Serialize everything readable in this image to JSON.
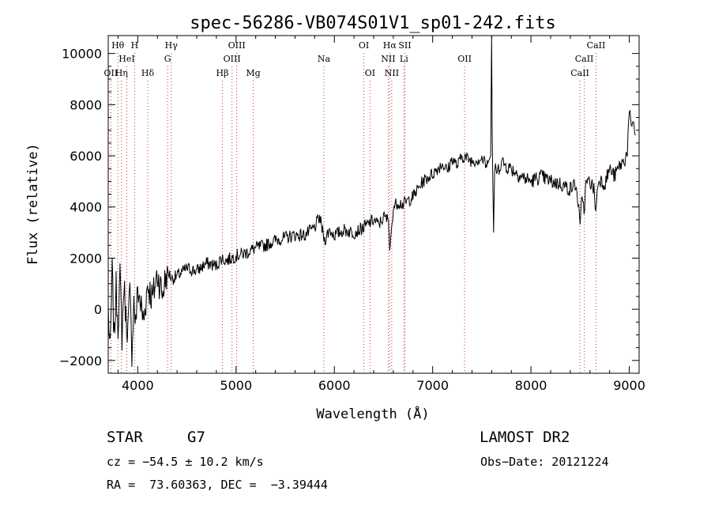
{
  "chart_data": {
    "type": "line",
    "title": "spec-56286-VB074S01V1_sp01-242.fits",
    "xlabel": "Wavelength (Å)",
    "ylabel": "Flux (relative)",
    "xlim": [
      3700,
      9100
    ],
    "ylim": [
      -2500,
      10700
    ],
    "xticks": [
      4000,
      5000,
      6000,
      7000,
      8000,
      9000
    ],
    "yticks": [
      -2000,
      0,
      2000,
      4000,
      6000,
      8000,
      10000
    ],
    "ytick_labels": [
      "−2000",
      "0",
      "2000",
      "4000",
      "6000",
      "8000",
      "10000"
    ],
    "grid": false,
    "series": [
      {
        "x": [
          3700,
          3720,
          3740,
          3760,
          3780,
          3800,
          3820,
          3840,
          3860,
          3880,
          3900,
          3920,
          3940,
          3960,
          3980,
          4000,
          4030,
          4060,
          4100,
          4150,
          4200,
          4250,
          4300,
          4350,
          4400,
          4500,
          4600,
          4700,
          4800,
          4850,
          4900,
          5000,
          5100,
          5200,
          5300,
          5400,
          5500,
          5600,
          5700,
          5800,
          5850,
          5900,
          5950,
          6000,
          6100,
          6200,
          6300,
          6400,
          6450,
          6500,
          6550,
          6563,
          6600,
          6650,
          6700,
          6800,
          6900,
          7000,
          7100,
          7150,
          7200,
          7250,
          7300,
          7400,
          7500,
          7550,
          7590,
          7600,
          7605,
          7610,
          7620,
          7630,
          7640,
          7650,
          7700,
          7750,
          7800,
          7900,
          8000,
          8100,
          8200,
          8300,
          8400,
          8450,
          8480,
          8500,
          8520,
          8540,
          8560,
          8600,
          8640,
          8660,
          8680,
          8700,
          8750,
          8800,
          8850,
          8900,
          8950,
          8980,
          9000,
          9020,
          9040,
          9060
        ],
        "y": [
          0,
          -1800,
          1500,
          -1200,
          800,
          -500,
          1200,
          -1000,
          1000,
          -300,
          -800,
          600,
          -1600,
          300,
          -600,
          800,
          200,
          -500,
          1000,
          400,
          1400,
          600,
          1500,
          1200,
          1300,
          1600,
          1500,
          1800,
          1700,
          2000,
          1900,
          2100,
          2200,
          2400,
          2500,
          2700,
          2800,
          2900,
          2900,
          3200,
          3600,
          2700,
          3100,
          2900,
          3100,
          3000,
          3200,
          3500,
          3300,
          3600,
          3500,
          2300,
          4000,
          4200,
          4100,
          4400,
          5000,
          5300,
          5700,
          5400,
          5900,
          5600,
          6000,
          5800,
          5900,
          5600,
          6000,
          10700,
          7000,
          5500,
          3000,
          5400,
          5700,
          5300,
          5800,
          5600,
          5500,
          5200,
          5000,
          5200,
          5000,
          4900,
          4700,
          4900,
          4200,
          3100,
          4600,
          3800,
          4900,
          5000,
          4700,
          3800,
          4900,
          5100,
          4900,
          5500,
          5200,
          5600,
          5800,
          6200,
          7700,
          7000,
          7500,
          6800
        ]
      }
    ],
    "line_markers": [
      {
        "label": "Hθ",
        "x": 3798,
        "row": 1
      },
      {
        "label": "OII",
        "x": 3727,
        "row": 3
      },
      {
        "label": "H",
        "x": 3969,
        "row": 1
      },
      {
        "label": "HeI",
        "x": 3889,
        "row": 2
      },
      {
        "label": "Hη",
        "x": 3835,
        "row": 3
      },
      {
        "label": "Hδ",
        "x": 4102,
        "row": 3
      },
      {
        "label": "Hγ",
        "x": 4341,
        "row": 1
      },
      {
        "label": "G",
        "x": 4304,
        "row": 2
      },
      {
        "label": "OIII",
        "x": 5007,
        "row": 1
      },
      {
        "label": "OIII",
        "x": 4959,
        "row": 2
      },
      {
        "label": "Hβ",
        "x": 4861,
        "row": 3
      },
      {
        "label": "Mg",
        "x": 5175,
        "row": 3
      },
      {
        "label": "Na",
        "x": 5893,
        "row": 2
      },
      {
        "label": "OI",
        "x": 6300,
        "row": 1
      },
      {
        "label": "OI",
        "x": 6363,
        "row": 3
      },
      {
        "label": "Hα",
        "x": 6563,
        "row": 1
      },
      {
        "label": "SII",
        "x": 6717,
        "row": 1
      },
      {
        "label": "NII",
        "x": 6548,
        "row": 2
      },
      {
        "label": "Li",
        "x": 6708,
        "row": 2
      },
      {
        "label": "NII",
        "x": 6584,
        "row": 3
      },
      {
        "label": "OII",
        "x": 7325,
        "row": 2
      },
      {
        "label": "CaII",
        "x": 8662,
        "row": 1
      },
      {
        "label": "CaII",
        "x": 8542,
        "row": 2
      },
      {
        "label": "CaII",
        "x": 8498,
        "row": 3
      }
    ]
  },
  "info": {
    "object_class": "STAR",
    "subclass": "G7",
    "survey": "LAMOST DR2",
    "cz": "cz = −54.5 ± 10.2 km/s",
    "obs_date": "Obs−Date: 20121224",
    "coords": "RA =  73.60363, DEC =  −3.39444"
  }
}
